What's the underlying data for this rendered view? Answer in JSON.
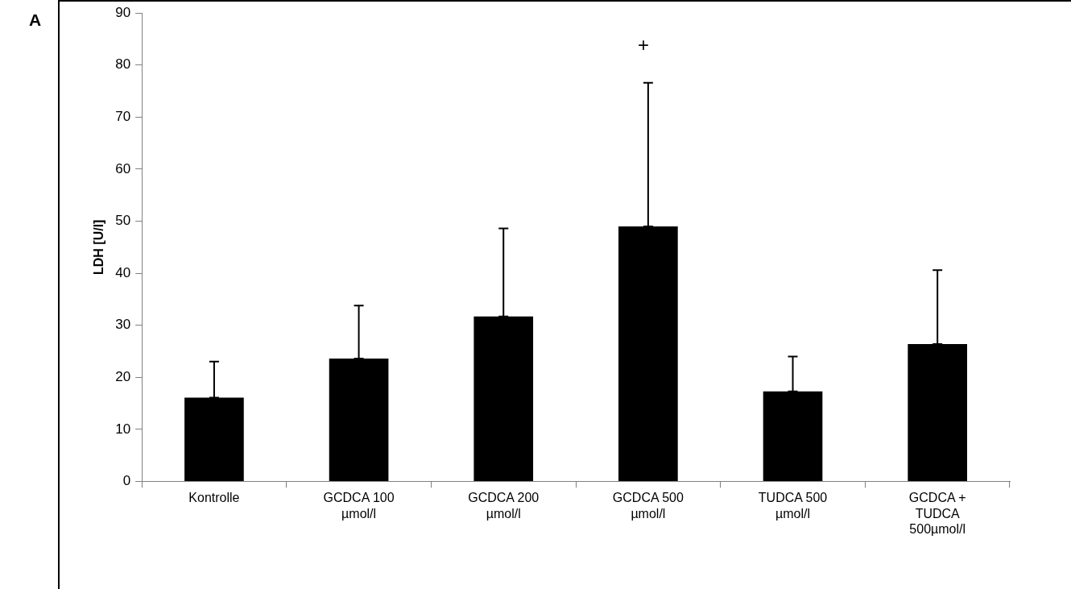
{
  "chart_data": {
    "type": "bar",
    "ylabel": "LDH [U/l]",
    "categories": [
      "Kontrolle",
      "GCDCA 100 µmol/l",
      "GCDCA 200 µmol/l",
      "GCDCA 500 µmol/l",
      "TUDCA 500 µmol/l",
      "GCDCA + TUDCA 500µmol/l"
    ],
    "values": [
      16.1,
      23.6,
      31.7,
      49,
      17.3,
      26.4
    ],
    "errors": [
      [
        16.1,
        23
      ],
      [
        23.6,
        33.8
      ],
      [
        31.7,
        48.6
      ],
      [
        49,
        76.6
      ],
      [
        17.3,
        24
      ],
      [
        26.4,
        40.6
      ]
    ],
    "color": "#000000",
    "ylim": [
      0,
      90
    ],
    "yticks": [
      0,
      10,
      20,
      30,
      40,
      50,
      60,
      70,
      80,
      90
    ],
    "grid": false,
    "legend": false,
    "annotations": [
      "A",
      "+"
    ]
  }
}
